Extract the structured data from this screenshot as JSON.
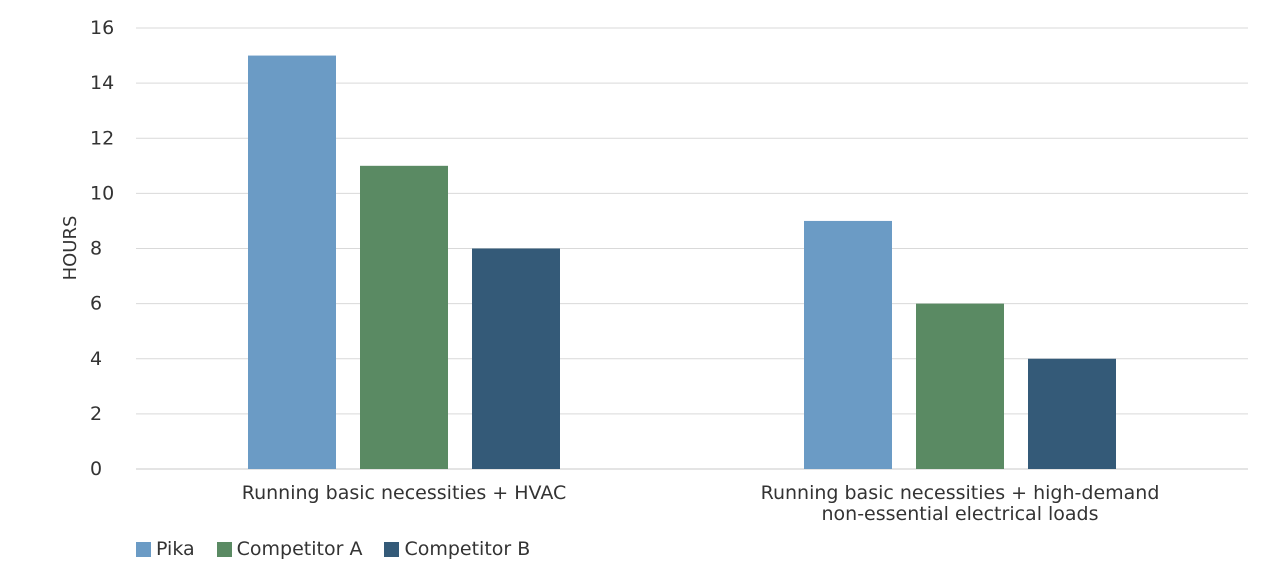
{
  "chart_data": {
    "type": "bar",
    "ylabel": "HOURS",
    "xlabel": "",
    "ylim": [
      0,
      16
    ],
    "yticks": [
      0,
      2,
      4,
      6,
      8,
      10,
      12,
      14,
      16
    ],
    "grid": true,
    "legend_position": "bottom-left",
    "categories": [
      [
        "Running basic necessities + HVAC"
      ],
      [
        "Running basic necessities + high-demand",
        "non-essential electrical loads"
      ]
    ],
    "series": [
      {
        "name": "Pika",
        "color": "#6b9bc5",
        "values": [
          15,
          9
        ]
      },
      {
        "name": "Competitor A",
        "color": "#5a8a63",
        "values": [
          11,
          6
        ]
      },
      {
        "name": "Competitor B",
        "color": "#345a78",
        "values": [
          8,
          4
        ]
      }
    ]
  }
}
